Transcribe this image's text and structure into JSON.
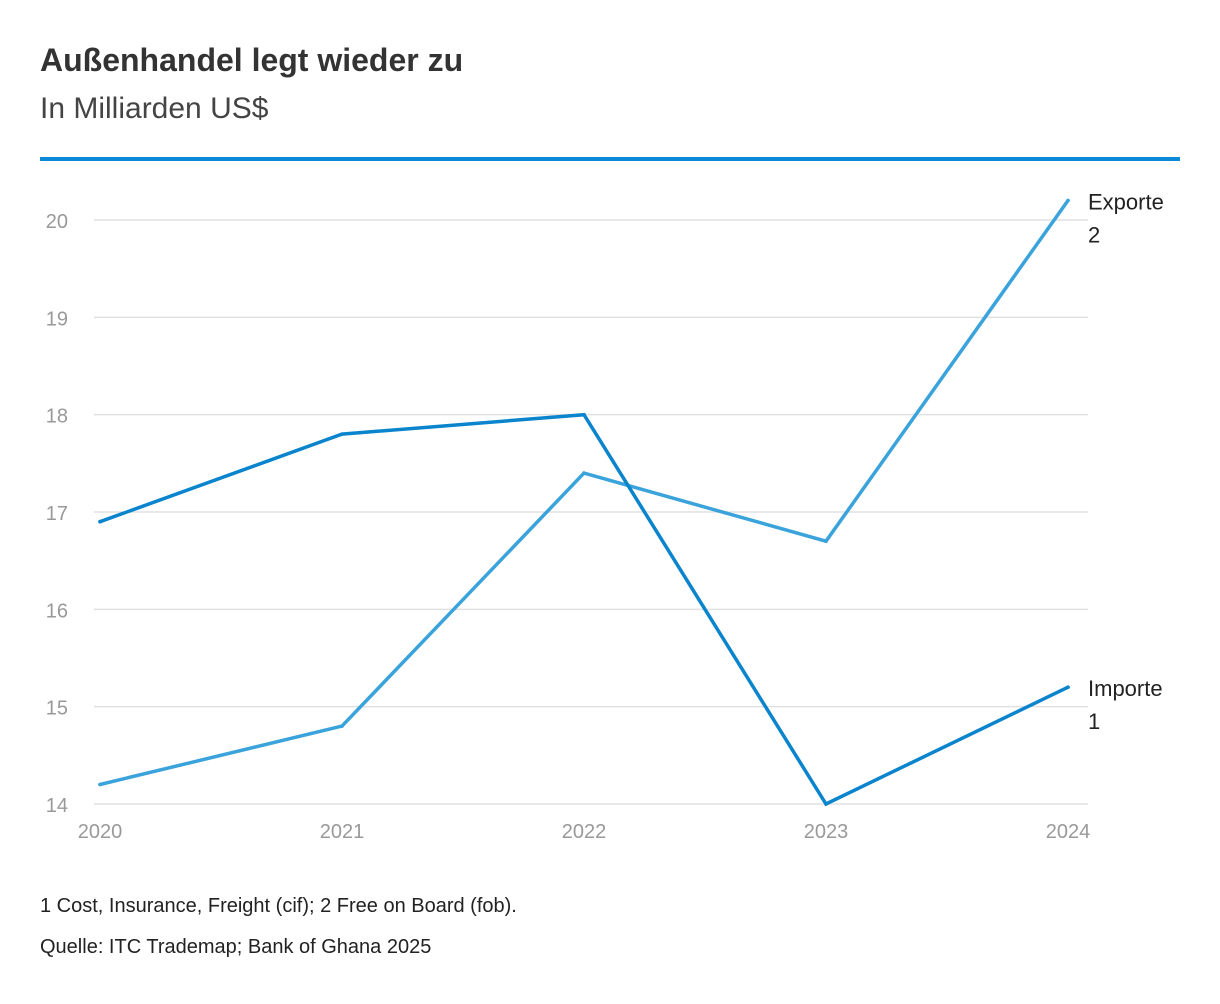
{
  "header": {
    "title": "Außenhandel legt wieder zu",
    "subtitle": "In Milliarden US$"
  },
  "chart_data": {
    "type": "line",
    "x": [
      "2020",
      "2021",
      "2022",
      "2023",
      "2024"
    ],
    "ylim": [
      14,
      20.2
    ],
    "yticks": [
      "14",
      "15",
      "16",
      "17",
      "18",
      "19",
      "20"
    ],
    "grid": true,
    "legend": "end-of-line labels",
    "series": [
      {
        "name": "Exporte",
        "footnote_mark": "2",
        "color": "#3aa3db",
        "values": [
          14.2,
          14.8,
          17.4,
          16.7,
          20.2
        ]
      },
      {
        "name": "Importe",
        "footnote_mark": "1",
        "color": "#0a84cc",
        "values": [
          16.9,
          17.8,
          18.0,
          14.0,
          15.2
        ]
      }
    ]
  },
  "footer": {
    "note": "1 Cost, Insurance, Freight (cif); 2 Free on Board (fob).",
    "source": "Quelle: ITC Trademap; Bank of Ghana 2025"
  }
}
